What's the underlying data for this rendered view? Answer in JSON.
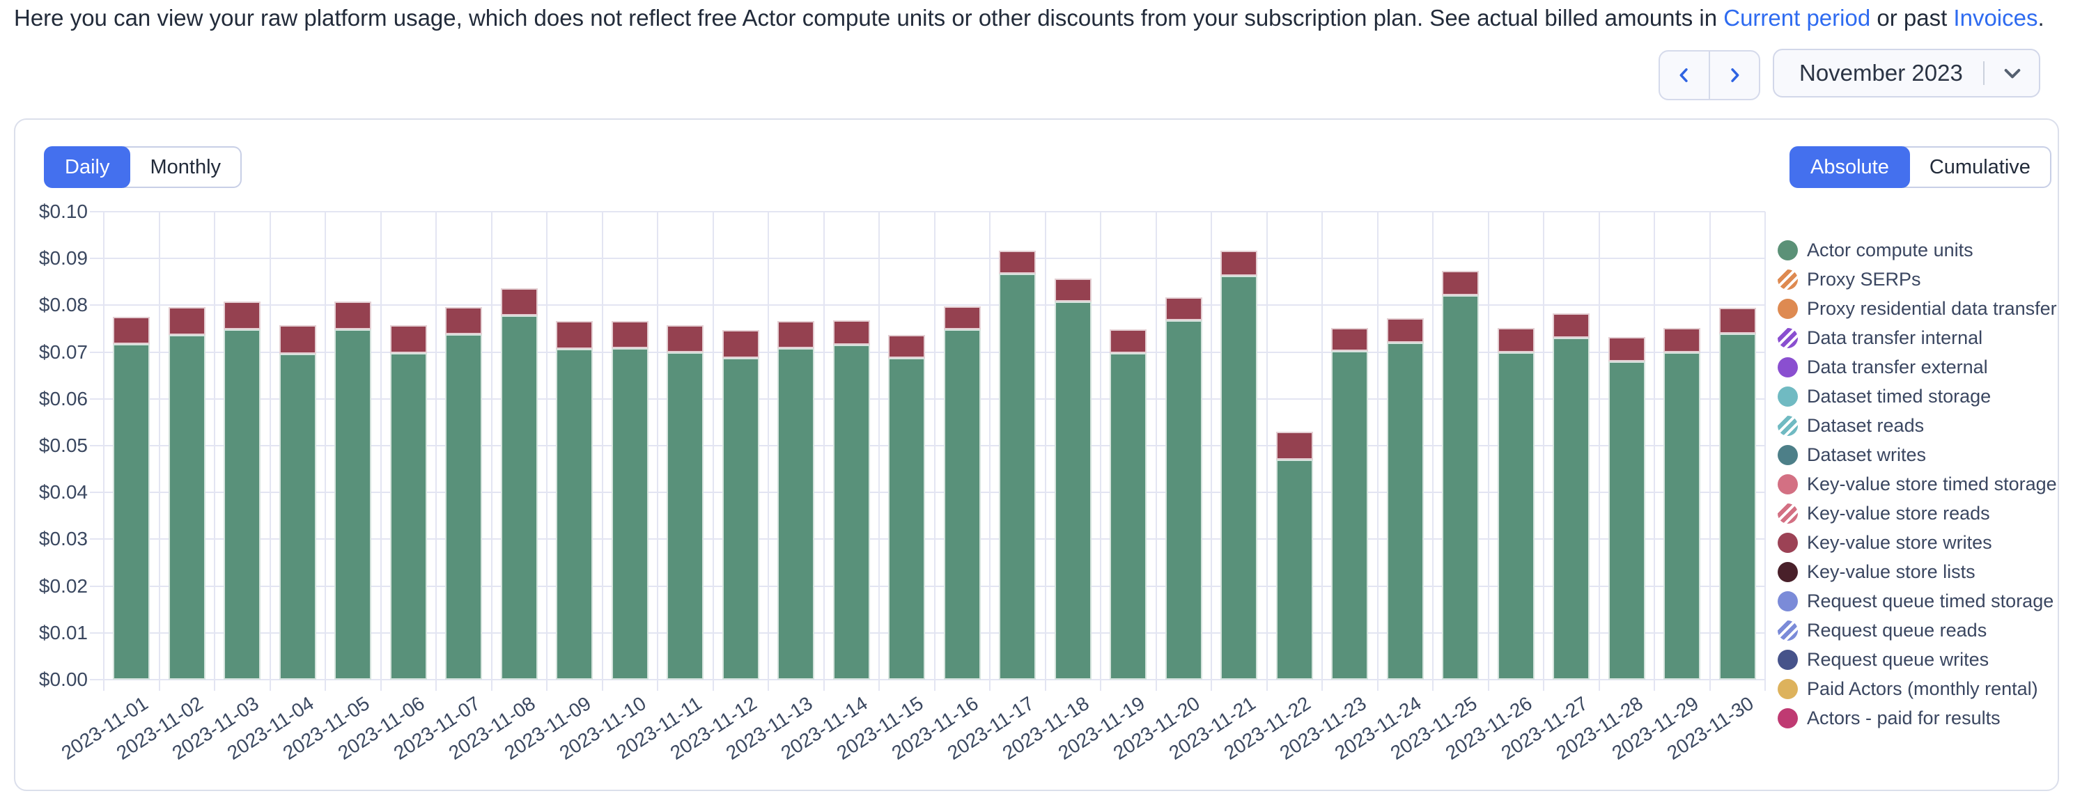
{
  "intro": {
    "text_start": "Here you can view your raw platform usage, which does not reflect free Actor compute units or other discounts from your subscription plan. See actual billed amounts in ",
    "link_current_period": "Current period",
    "text_between": " or past ",
    "link_invoices": "Invoices",
    "text_end": "."
  },
  "controls": {
    "month_picker": {
      "value": "November 2023"
    }
  },
  "toggles": {
    "granularity": {
      "options": [
        "Daily",
        "Monthly"
      ],
      "selected": "Daily"
    },
    "mode": {
      "options": [
        "Absolute",
        "Cumulative"
      ],
      "selected": "Absolute"
    }
  },
  "colors": {
    "accent_blue": "#4470ee",
    "link_blue": "#2e6bf0",
    "grid": "#e3e5f2",
    "bar_green": "#59917a",
    "bar_red": "#954150"
  },
  "chart_data": {
    "type": "bar",
    "stacked": true,
    "x": [
      "2023-11-01",
      "2023-11-02",
      "2023-11-03",
      "2023-11-04",
      "2023-11-05",
      "2023-11-06",
      "2023-11-07",
      "2023-11-08",
      "2023-11-09",
      "2023-11-10",
      "2023-11-11",
      "2023-11-12",
      "2023-11-13",
      "2023-11-14",
      "2023-11-15",
      "2023-11-16",
      "2023-11-17",
      "2023-11-18",
      "2023-11-19",
      "2023-11-20",
      "2023-11-21",
      "2023-11-22",
      "2023-11-23",
      "2023-11-24",
      "2023-11-25",
      "2023-11-26",
      "2023-11-27",
      "2023-11-28",
      "2023-11-29",
      "2023-11-30"
    ],
    "ylim": [
      0,
      0.1
    ],
    "y_ticks": [
      "$0.00",
      "$0.01",
      "$0.02",
      "$0.03",
      "$0.04",
      "$0.05",
      "$0.06",
      "$0.07",
      "$0.08",
      "$0.09",
      "$0.10"
    ],
    "grid": true,
    "legend_position": "right",
    "series": [
      {
        "name": "Actor compute units",
        "color": "#59917a",
        "values": [
          0.0717,
          0.0737,
          0.0748,
          0.0697,
          0.0749,
          0.0698,
          0.0738,
          0.0778,
          0.0707,
          0.0708,
          0.07,
          0.0687,
          0.0708,
          0.0716,
          0.0688,
          0.0749,
          0.0868,
          0.0808,
          0.0698,
          0.0768,
          0.0863,
          0.047,
          0.0702,
          0.072,
          0.0822,
          0.07,
          0.0731,
          0.068,
          0.07,
          0.074
        ]
      },
      {
        "name": "Key-value store writes",
        "color": "#954150",
        "values": [
          0.0059,
          0.0059,
          0.006,
          0.006,
          0.0059,
          0.0059,
          0.0058,
          0.0059,
          0.006,
          0.0059,
          0.0058,
          0.006,
          0.0059,
          0.0052,
          0.0049,
          0.0049,
          0.0049,
          0.0049,
          0.005,
          0.0049,
          0.0054,
          0.006,
          0.005,
          0.0052,
          0.0051,
          0.0052,
          0.0051,
          0.0052,
          0.0052,
          0.0055
        ]
      }
    ],
    "legend": [
      {
        "name": "Actor compute units",
        "color": "#5b9177",
        "striped": false
      },
      {
        "name": "Proxy SERPs",
        "color": "#de8a51",
        "striped": true
      },
      {
        "name": "Proxy residential data transfer",
        "color": "#de8a51",
        "striped": false
      },
      {
        "name": "Data transfer internal",
        "color": "#8a4fd0",
        "striped": true
      },
      {
        "name": "Data transfer external",
        "color": "#8a4fd0",
        "striped": false
      },
      {
        "name": "Dataset timed storage",
        "color": "#70bac2",
        "striped": false
      },
      {
        "name": "Dataset reads",
        "color": "#70bac2",
        "striped": true
      },
      {
        "name": "Dataset writes",
        "color": "#4d7f88",
        "striped": false
      },
      {
        "name": "Key-value store timed storage",
        "color": "#d37083",
        "striped": false
      },
      {
        "name": "Key-value store reads",
        "color": "#d37083",
        "striped": true
      },
      {
        "name": "Key-value store writes",
        "color": "#9c4255",
        "striped": false
      },
      {
        "name": "Key-value store lists",
        "color": "#49202a",
        "striped": false
      },
      {
        "name": "Request queue timed storage",
        "color": "#7b8bd8",
        "striped": false
      },
      {
        "name": "Request queue reads",
        "color": "#7b8bd8",
        "striped": true
      },
      {
        "name": "Request queue writes",
        "color": "#46538a",
        "striped": false
      },
      {
        "name": "Paid Actors (monthly rental)",
        "color": "#ddb25c",
        "striped": false
      },
      {
        "name": "Actors - paid for results",
        "color": "#bf3a72",
        "striped": false
      }
    ]
  }
}
